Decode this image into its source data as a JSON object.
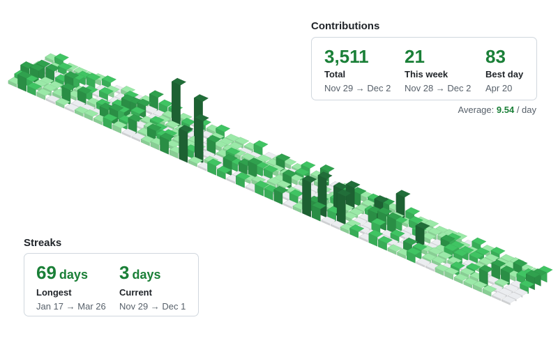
{
  "contributions": {
    "title": "Contributions",
    "stats": [
      {
        "value": "3,511",
        "label": "Total",
        "range": "Nov 29 → Dec 2"
      },
      {
        "value": "21",
        "label": "This week",
        "range": "Nov 28 → Dec 2"
      },
      {
        "value": "83",
        "label": "Best day",
        "range": "Apr 20"
      }
    ],
    "average_prefix": "Average:",
    "average_value": "9.54",
    "average_suffix": "/ day"
  },
  "streaks": {
    "title": "Streaks",
    "stats": [
      {
        "value": "69",
        "unit": "days",
        "label": "Longest",
        "range": "Jan 17 → Mar 26"
      },
      {
        "value": "3",
        "unit": "days",
        "label": "Current",
        "range": "Nov 29 → Dec 1"
      }
    ]
  },
  "colors": {
    "accent": "#1a7f37",
    "level0": "#ebedf0",
    "level1": "#9be9a8",
    "level2": "#40c463",
    "level3": "#30a14e",
    "level4": "#216e39"
  },
  "chart_data": {
    "type": "isometric-contribution-calendar",
    "weeks": 53,
    "days_per_week": 7,
    "level_thresholds": [
      0,
      1,
      4,
      8,
      16
    ],
    "highlight_days": [
      {
        "week": 14,
        "day": 1,
        "count": 83
      },
      {
        "week": 17,
        "day": 2,
        "count": 62
      },
      {
        "week": 19,
        "day": 5,
        "count": 48
      },
      {
        "week": 18,
        "day": 6,
        "count": 28
      },
      {
        "week": 31,
        "day": 6,
        "count": 32
      },
      {
        "week": 32,
        "day": 5,
        "count": 36
      },
      {
        "week": 33,
        "day": 4,
        "count": 26
      },
      {
        "week": 34,
        "day": 5,
        "count": 27
      },
      {
        "week": 33,
        "day": 2,
        "count": 20
      },
      {
        "week": 37,
        "day": 0,
        "count": 20
      },
      {
        "week": 36,
        "day": 2,
        "count": 18
      },
      {
        "week": 41,
        "day": 3,
        "count": 16
      }
    ]
  }
}
